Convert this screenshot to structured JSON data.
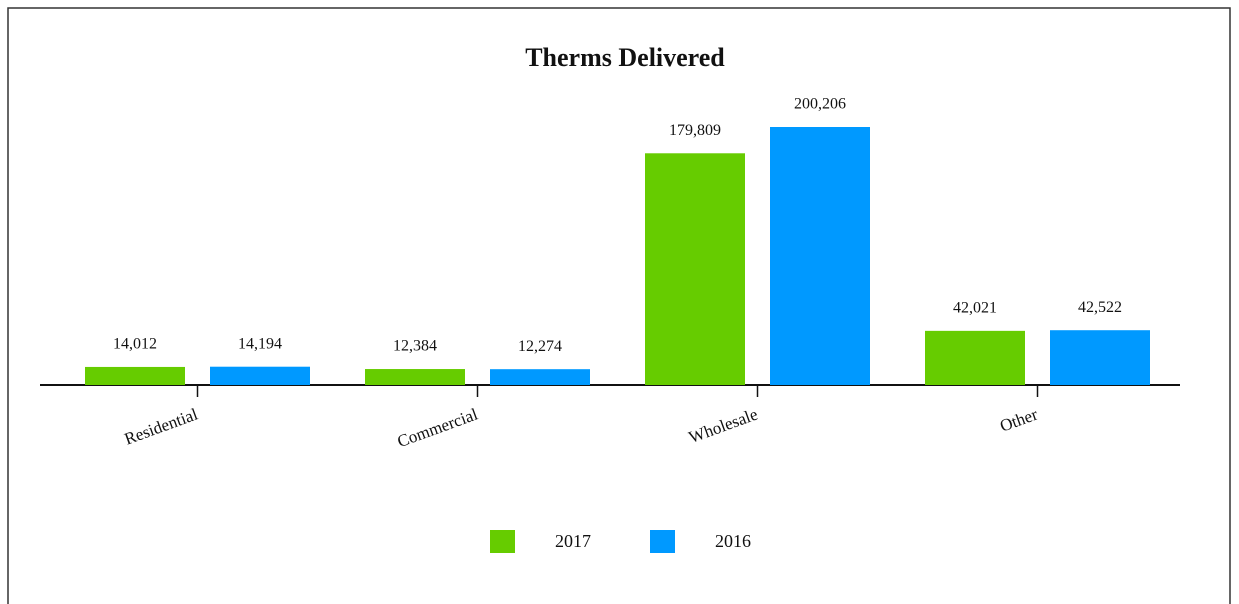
{
  "chart_data": {
    "type": "bar",
    "title": "Therms Delivered",
    "categories": [
      "Residential",
      "Commercial",
      "Wholesale",
      "Other"
    ],
    "series": [
      {
        "name": "2017",
        "color": "#66cc00",
        "values": [
          14012,
          12384,
          179809,
          42021
        ],
        "value_labels": [
          "14,012",
          "12,384",
          "179,809",
          "42,021"
        ]
      },
      {
        "name": "2016",
        "color": "#0099ff",
        "values": [
          14194,
          12274,
          200206,
          42522
        ],
        "value_labels": [
          "14,194",
          "12,274",
          "200,206",
          "42,522"
        ]
      }
    ],
    "legend": "bottom"
  }
}
